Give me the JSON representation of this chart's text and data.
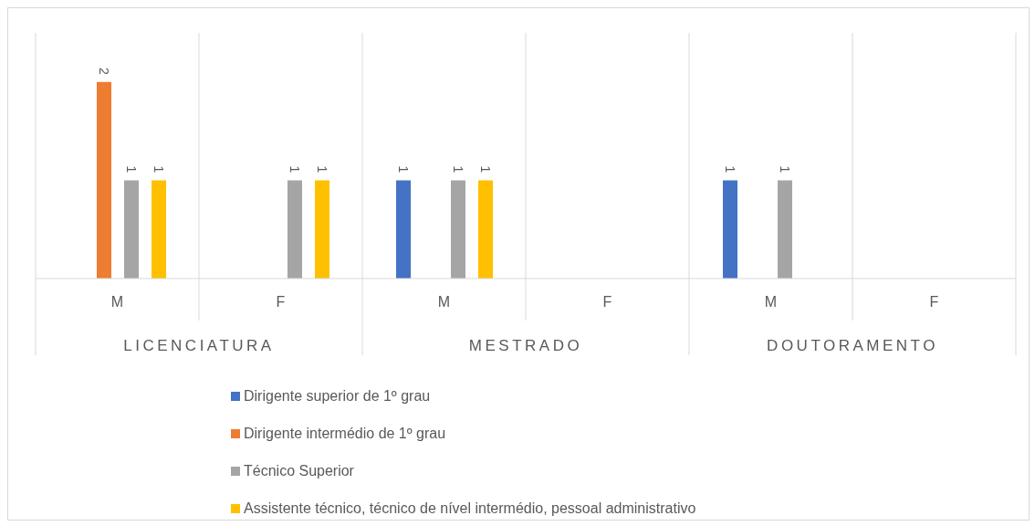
{
  "chart_data": {
    "type": "bar",
    "categories": [
      "M",
      "F",
      "M",
      "F",
      "M",
      "F"
    ],
    "series": [
      {
        "name": "Dirigente superior de 1º grau",
        "color": "#4472c4",
        "values": [
          null,
          null,
          1,
          null,
          1,
          null
        ]
      },
      {
        "name": "Dirigente intermédio de 1º grau",
        "color": "#ed7d31",
        "values": [
          2,
          null,
          null,
          null,
          null,
          null
        ]
      },
      {
        "name": "Técnico Superior",
        "color": "#a5a5a5",
        "values": [
          1,
          1,
          1,
          null,
          1,
          null
        ]
      },
      {
        "name": "Assistente técnico, técnico de nível intermédio, pessoal administrativo",
        "color": "#ffc000",
        "values": [
          1,
          1,
          1,
          null,
          null,
          null
        ]
      }
    ],
    "annotations": [
      "LICENCIATURA",
      "MESTRADO",
      "DOUTORAMENTO"
    ],
    "tick_labels": "x",
    "data_labels": true,
    "legend": "bottom"
  }
}
